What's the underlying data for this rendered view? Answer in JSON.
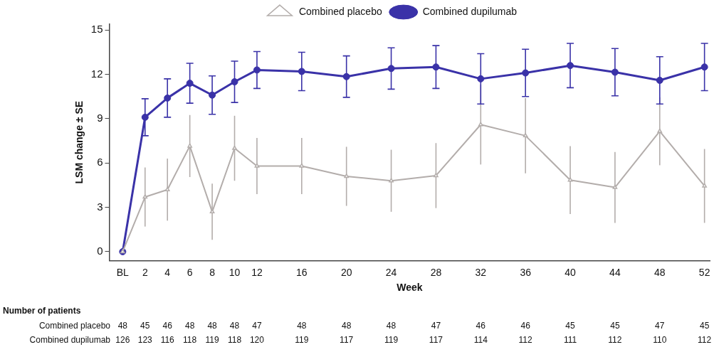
{
  "chart_data": {
    "type": "line",
    "xlabel": "Week",
    "ylabel": "LSM change ± SE",
    "x": [
      0,
      2,
      4,
      6,
      8,
      10,
      12,
      16,
      20,
      24,
      28,
      32,
      36,
      40,
      44,
      48,
      52
    ],
    "xlim": [
      -1.2,
      52.5
    ],
    "xticks": [
      {
        "value": 0,
        "label": "BL"
      },
      2,
      4,
      6,
      8,
      10,
      12,
      16,
      20,
      24,
      28,
      32,
      36,
      40,
      44,
      48,
      52
    ],
    "ylim": [
      -0.6,
      15.4
    ],
    "yticks": [
      0,
      3,
      6,
      9,
      12,
      15
    ],
    "grid": false,
    "legend": "top",
    "line_style": "solid",
    "series": [
      {
        "name": "Combined placebo",
        "color": "#b3adab",
        "marker": "triangle",
        "values": [
          0,
          3.7,
          4.2,
          7.15,
          2.7,
          7.0,
          5.8,
          5.8,
          5.1,
          4.8,
          5.15,
          8.6,
          7.85,
          4.85,
          4.35,
          8.15,
          4.45
        ],
        "errors": [
          null,
          2.0,
          2.1,
          2.1,
          1.9,
          2.2,
          1.9,
          1.9,
          2.0,
          2.1,
          2.2,
          2.7,
          2.55,
          2.3,
          2.4,
          2.3,
          2.5
        ]
      },
      {
        "name": "Combined dupilumab",
        "color": "#3a32a8",
        "marker": "circle",
        "values": [
          0,
          9.1,
          10.4,
          11.4,
          10.6,
          11.5,
          12.3,
          12.2,
          11.85,
          12.4,
          12.5,
          11.7,
          12.1,
          12.6,
          12.15,
          11.6,
          12.5
        ],
        "errors": [
          null,
          1.25,
          1.3,
          1.35,
          1.3,
          1.4,
          1.25,
          1.3,
          1.4,
          1.4,
          1.45,
          1.7,
          1.6,
          1.5,
          1.6,
          1.6,
          1.6
        ]
      }
    ],
    "annotations": [
      "Number of patients",
      "Combined placebo",
      "48 45 46 48 48 48 47 48 48 48 47 46 46 45 45 47 45",
      "Combined dupilumab",
      "126 123 116 118 119 118 120 119 117 119 117 114 112 111 112 110 112"
    ]
  }
}
